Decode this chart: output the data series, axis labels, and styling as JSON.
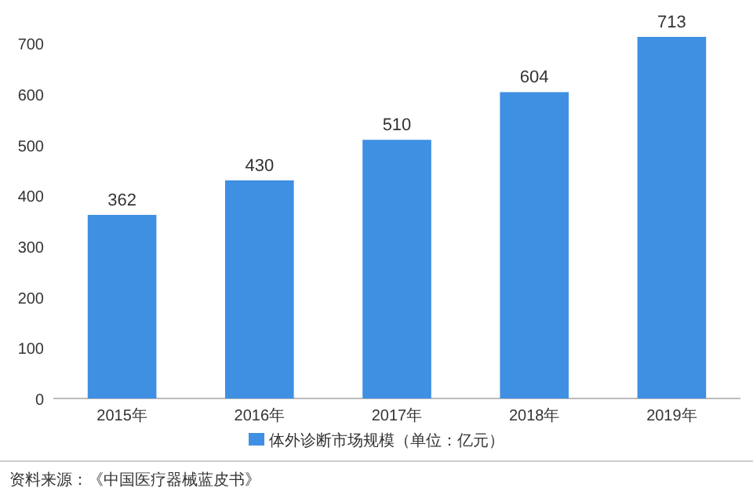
{
  "chart_data": {
    "type": "bar",
    "categories": [
      "2015年",
      "2016年",
      "2017年",
      "2018年",
      "2019年"
    ],
    "series": [
      {
        "name": "体外诊断市场规模（单位：亿元）",
        "color": "#3f8fe3",
        "values": [
          362,
          430,
          510,
          604,
          713
        ]
      }
    ],
    "ylim": [
      0,
      730
    ],
    "yticks": [
      0,
      100,
      200,
      300,
      400,
      500,
      600,
      700
    ],
    "data_labels": true,
    "legend": "bottom",
    "grid": false,
    "annotations": [
      "资料来源：《中国医疗器械蓝皮书》"
    ]
  }
}
